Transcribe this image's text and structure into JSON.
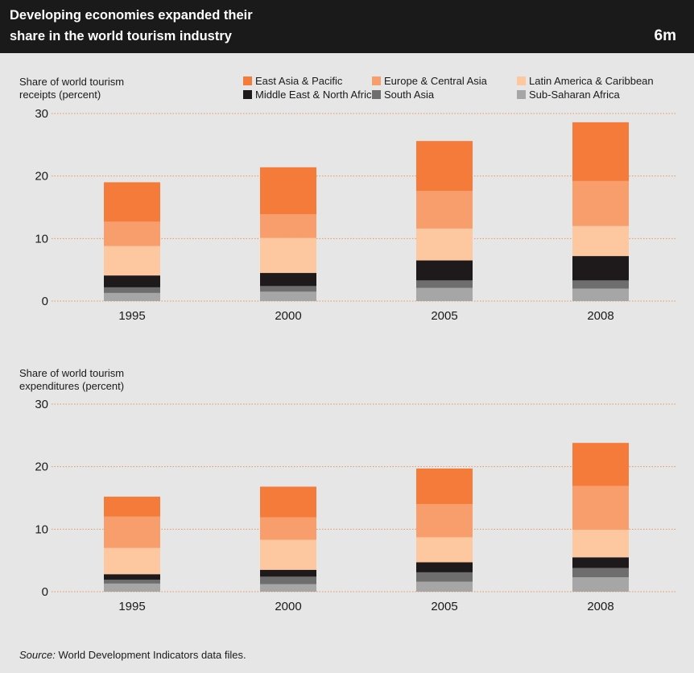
{
  "header": {
    "title_line1": "Developing economies expanded their",
    "title_line2": "share in the world tourism industry",
    "code": "6m"
  },
  "source": {
    "label": "Source:",
    "text": "World Development Indicators data files."
  },
  "chart_data": [
    {
      "type": "bar",
      "stacked": true,
      "ylabel_line1": "Share of world tourism",
      "ylabel_line2": "receipts (percent)",
      "categories": [
        "1995",
        "2000",
        "2005",
        "2008"
      ],
      "ylim": [
        0,
        30
      ],
      "yticks": [
        "0",
        "10",
        "20",
        "30"
      ],
      "grid": true,
      "legend": "top-right",
      "series": [
        {
          "name": "Sub-Saharan Africa",
          "color": "#a6a6a6",
          "values": [
            1.3,
            1.5,
            2.1,
            2.0
          ]
        },
        {
          "name": "South Asia",
          "color": "#6e6e6e",
          "values": [
            0.9,
            0.9,
            1.2,
            1.3
          ]
        },
        {
          "name": "Middle East & North Africa",
          "color": "#1e1a1b",
          "values": [
            1.9,
            2.1,
            3.2,
            3.9
          ]
        },
        {
          "name": "Latin America & Caribbean",
          "color": "#fdc79f",
          "values": [
            4.7,
            5.6,
            5.1,
            4.8
          ]
        },
        {
          "name": "Europe & Central Asia",
          "color": "#f79e6c",
          "values": [
            3.9,
            3.8,
            6.0,
            7.2
          ]
        },
        {
          "name": "East Asia & Pacific",
          "color": "#f47b3a",
          "values": [
            6.3,
            7.5,
            8.0,
            9.4
          ]
        }
      ]
    },
    {
      "type": "bar",
      "stacked": true,
      "ylabel_line1": "Share of world tourism",
      "ylabel_line2": "expenditures (percent)",
      "categories": [
        "1995",
        "2000",
        "2005",
        "2008"
      ],
      "ylim": [
        0,
        30
      ],
      "yticks": [
        "0",
        "10",
        "20",
        "30"
      ],
      "grid": true,
      "series": [
        {
          "name": "Sub-Saharan Africa",
          "color": "#a6a6a6",
          "values": [
            1.3,
            1.2,
            1.6,
            2.3
          ]
        },
        {
          "name": "South Asia",
          "color": "#6e6e6e",
          "values": [
            0.6,
            1.2,
            1.5,
            1.5
          ]
        },
        {
          "name": "Middle East & North Africa",
          "color": "#1e1a1b",
          "values": [
            0.9,
            1.1,
            1.6,
            1.7
          ]
        },
        {
          "name": "Latin America & Caribbean",
          "color": "#fdc79f",
          "values": [
            4.2,
            4.8,
            4.0,
            4.4
          ]
        },
        {
          "name": "Europe & Central Asia",
          "color": "#f79e6c",
          "values": [
            5.0,
            3.6,
            5.3,
            7.0
          ]
        },
        {
          "name": "East Asia & Pacific",
          "color": "#f47b3a",
          "values": [
            3.2,
            4.9,
            5.7,
            6.9
          ]
        }
      ]
    }
  ]
}
